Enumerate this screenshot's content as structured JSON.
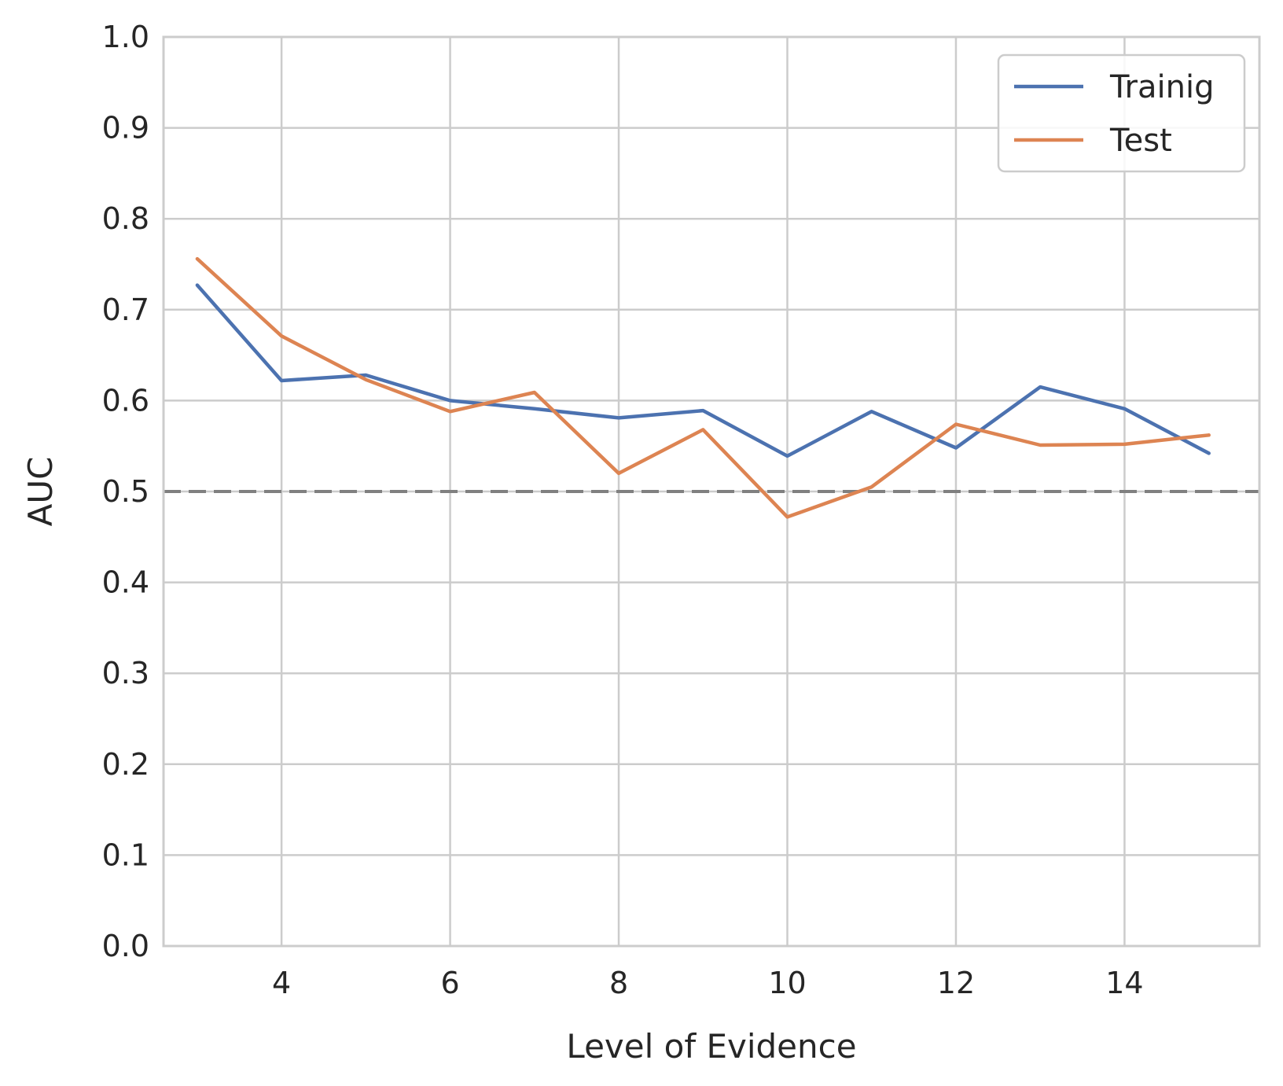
{
  "chart_data": {
    "type": "line",
    "xlabel": "Level of Evidence",
    "ylabel": "AUC",
    "xlim": [
      2.6,
      15.6
    ],
    "ylim": [
      0.0,
      1.0
    ],
    "xticks": [
      4,
      6,
      8,
      10,
      12,
      14
    ],
    "xtick_labels": [
      "4",
      "6",
      "8",
      "10",
      "12",
      "14"
    ],
    "yticks": [
      0.0,
      0.1,
      0.2,
      0.3,
      0.4,
      0.5,
      0.6,
      0.7,
      0.8,
      0.9,
      1.0
    ],
    "ytick_labels": [
      "0.0",
      "0.1",
      "0.2",
      "0.3",
      "0.4",
      "0.5",
      "0.6",
      "0.7",
      "0.8",
      "0.9",
      "1.0"
    ],
    "grid": true,
    "legend_position": "top-right",
    "x": [
      3,
      4,
      5,
      6,
      7,
      8,
      9,
      10,
      11,
      12,
      13,
      14,
      15
    ],
    "series": [
      {
        "name": "Trainig",
        "color": "#4c72b0",
        "values": [
          0.727,
          0.622,
          0.628,
          0.6,
          0.591,
          0.581,
          0.589,
          0.539,
          0.588,
          0.548,
          0.615,
          0.591,
          0.542
        ]
      },
      {
        "name": "Test",
        "color": "#dd8452",
        "values": [
          0.756,
          0.671,
          0.623,
          0.588,
          0.609,
          0.52,
          0.568,
          0.472,
          0.505,
          0.574,
          0.551,
          0.552,
          0.562
        ]
      }
    ],
    "reference_line": {
      "y": 0.5,
      "style": "dashed",
      "color": "#808080"
    }
  }
}
